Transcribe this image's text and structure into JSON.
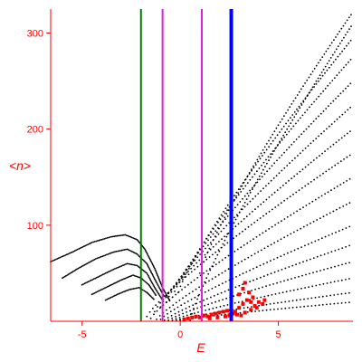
{
  "chart_data": {
    "type": "scatter",
    "title": "",
    "xlabel": "E",
    "ylabel": "<n>",
    "xlim": [
      -6.6,
      8.8
    ],
    "ylim": [
      0,
      325
    ],
    "grid": false,
    "legend": "none",
    "x_ticks": [
      -5,
      0,
      5
    ],
    "y_ticks": [
      100,
      200,
      300
    ],
    "tick_labels_x": [
      "-5",
      "0",
      "5"
    ],
    "tick_labels_y": [
      "100",
      "200",
      "300"
    ],
    "colors": {
      "axis": "#ff0000",
      "points": "#000000",
      "highlight_points": "#ff0000",
      "vline_green": "#008000",
      "vline_magenta": "#dd22dd",
      "vline_blue": "#0000ff"
    },
    "vertical_lines": [
      {
        "x": -2.0,
        "color": "#008000",
        "width": 2
      },
      {
        "x": -0.9,
        "color": "#dd22dd",
        "width": 2
      },
      {
        "x": 1.1,
        "color": "#dd22dd",
        "width": 2
      },
      {
        "x": 2.6,
        "color": "#0000ff",
        "width": 4
      }
    ],
    "series": [
      {
        "values": [
          [
            -1.7,
            5
          ],
          [
            8.8,
            175
          ]
        ]
      },
      {
        "values": [
          [
            -1.3,
            10
          ],
          [
            8.8,
            200
          ]
        ]
      },
      {
        "values": [
          [
            -1.0,
            15
          ],
          [
            8.8,
            225
          ]
        ]
      },
      {
        "values": [
          [
            -0.7,
            20
          ],
          [
            8.8,
            250
          ]
        ]
      },
      {
        "values": [
          [
            -0.4,
            25
          ],
          [
            8.8,
            275
          ]
        ]
      },
      {
        "values": [
          [
            -0.1,
            30
          ],
          [
            8.8,
            295
          ]
        ]
      },
      {
        "values": [
          [
            -1.5,
            3
          ],
          [
            8.8,
            150
          ]
        ]
      },
      {
        "values": [
          [
            -1.2,
            2
          ],
          [
            8.8,
            125
          ]
        ]
      },
      {
        "values": [
          [
            -1.0,
            2
          ],
          [
            8.8,
            100
          ]
        ]
      },
      {
        "values": [
          [
            -0.8,
            1
          ],
          [
            8.8,
            80
          ]
        ]
      },
      {
        "values": [
          [
            -0.6,
            1
          ],
          [
            8.8,
            62
          ]
        ]
      },
      {
        "values": [
          [
            -0.4,
            1
          ],
          [
            8.8,
            45
          ]
        ]
      },
      {
        "values": [
          [
            -0.2,
            1
          ],
          [
            8.8,
            30
          ]
        ]
      },
      {
        "values": [
          [
            0.0,
            1
          ],
          [
            8.8,
            20
          ]
        ]
      },
      {
        "values": [
          [
            0.5,
            1
          ],
          [
            8.8,
            310
          ]
        ]
      },
      {
        "values": [
          [
            1.0,
            50
          ],
          [
            8.8,
            322
          ]
        ]
      }
    ],
    "left_branches": [
      {
        "values": [
          [
            -6.6,
            62
          ],
          [
            -5.5,
            72
          ],
          [
            -4.5,
            82
          ],
          [
            -3.5,
            88
          ],
          [
            -2.8,
            90
          ],
          [
            -2.2,
            85
          ],
          [
            -1.8,
            75
          ],
          [
            -1.3,
            55
          ],
          [
            -0.9,
            35
          ],
          [
            -0.5,
            20
          ]
        ]
      },
      {
        "values": [
          [
            -6.0,
            45
          ],
          [
            -5.2,
            55
          ],
          [
            -4.3,
            65
          ],
          [
            -3.4,
            72
          ],
          [
            -2.7,
            75
          ],
          [
            -2.2,
            70
          ],
          [
            -1.7,
            60
          ],
          [
            -1.2,
            40
          ],
          [
            -0.8,
            25
          ]
        ]
      },
      {
        "values": [
          [
            -5.0,
            38
          ],
          [
            -4.2,
            46
          ],
          [
            -3.4,
            54
          ],
          [
            -2.7,
            60
          ],
          [
            -2.2,
            58
          ],
          [
            -1.7,
            50
          ],
          [
            -1.3,
            35
          ],
          [
            -0.9,
            22
          ]
        ]
      },
      {
        "values": [
          [
            -4.5,
            28
          ],
          [
            -3.7,
            36
          ],
          [
            -3.0,
            43
          ],
          [
            -2.4,
            48
          ],
          [
            -2.0,
            45
          ],
          [
            -1.6,
            38
          ],
          [
            -1.2,
            26
          ]
        ]
      },
      {
        "values": [
          [
            -3.8,
            22
          ],
          [
            -3.2,
            28
          ],
          [
            -2.6,
            33
          ],
          [
            -2.1,
            35
          ],
          [
            -1.7,
            30
          ],
          [
            -1.3,
            22
          ]
        ]
      }
    ],
    "highlight_cluster": [
      [
        0.2,
        2
      ],
      [
        0.4,
        3
      ],
      [
        0.6,
        4
      ],
      [
        0.8,
        5
      ],
      [
        1.0,
        4
      ],
      [
        1.2,
        6
      ],
      [
        1.4,
        5
      ],
      [
        1.6,
        7
      ],
      [
        1.8,
        8
      ],
      [
        2.0,
        9
      ],
      [
        2.2,
        10
      ],
      [
        2.4,
        11
      ],
      [
        2.6,
        12
      ],
      [
        2.8,
        10
      ],
      [
        3.0,
        14
      ],
      [
        3.2,
        18
      ],
      [
        3.4,
        22
      ],
      [
        3.6,
        20
      ],
      [
        3.8,
        16
      ],
      [
        3.0,
        28
      ],
      [
        3.2,
        34
      ],
      [
        3.3,
        40
      ],
      [
        3.5,
        30
      ],
      [
        3.7,
        25
      ],
      [
        4.0,
        20
      ],
      [
        4.2,
        18
      ],
      [
        2.5,
        6
      ],
      [
        2.7,
        8
      ],
      [
        1.5,
        3
      ],
      [
        1.9,
        4
      ],
      [
        2.3,
        5
      ],
      [
        2.9,
        7
      ],
      [
        3.1,
        6
      ],
      [
        3.3,
        9
      ],
      [
        3.6,
        12
      ],
      [
        3.9,
        14
      ],
      [
        4.3,
        22
      ]
    ]
  }
}
